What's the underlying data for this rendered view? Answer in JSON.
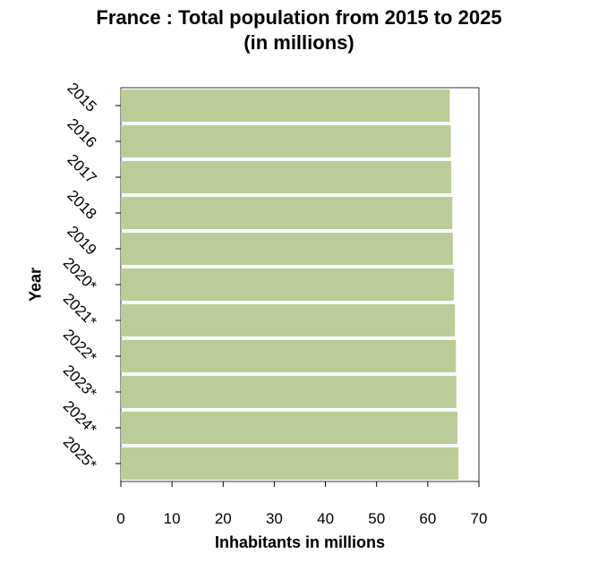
{
  "chart_data": {
    "type": "bar",
    "orientation": "horizontal",
    "title_line1": "France : Total population from 2015 to 2025",
    "title_line2": "(in millions)",
    "xlabel": "Inhabitants in millions",
    "ylabel": "Year",
    "xlim": [
      0,
      70
    ],
    "xticks": [
      "0",
      "10",
      "20",
      "30",
      "40",
      "50",
      "60",
      "70"
    ],
    "categories": [
      "2015",
      "2016",
      "2017",
      "2018",
      "2019",
      "2020*",
      "2021*",
      "2022*",
      "2023*",
      "2024*",
      "2025*"
    ],
    "values": [
      64.3,
      64.5,
      64.6,
      64.8,
      64.9,
      65.1,
      65.3,
      65.5,
      65.6,
      65.8,
      66.0
    ],
    "bar_color": "#bccc99",
    "grid": false,
    "legend": "none"
  }
}
